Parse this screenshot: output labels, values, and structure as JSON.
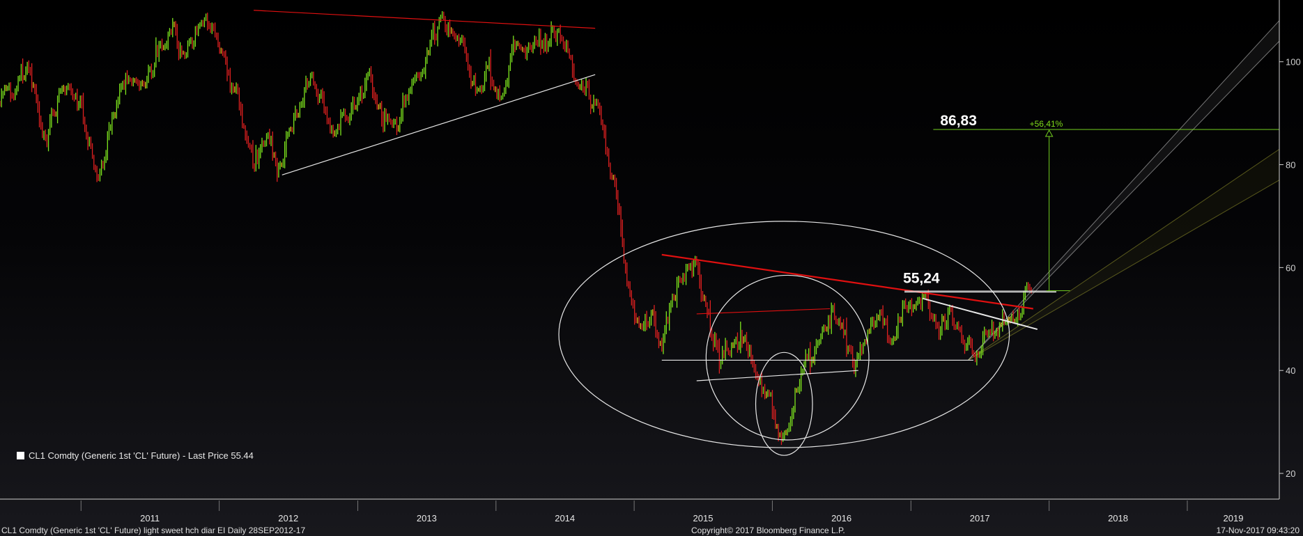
{
  "chart_data": {
    "type": "candlestick",
    "instrument": "CL1 Comdty (Generic 1st 'CL' Future)",
    "legend": {
      "label": "CL1 Comdty (Generic 1st 'CL' Future) - Last Price 55.44",
      "placement": "bottom-left"
    },
    "colors": {
      "up": "#7ee61e",
      "down": "#e02020",
      "neutral": "#e8c41a",
      "annotation_red": "#e01010",
      "annotation_white": "#e8e8e8",
      "target_green": "#74d020"
    },
    "y_axis": {
      "position": "right",
      "ylim": [
        15,
        112
      ],
      "ticks": [
        20,
        40,
        60,
        80,
        100
      ]
    },
    "x_axis": {
      "xlim": [
        "2010-06-01",
        "2019-09-01"
      ],
      "year_labels": [
        "2011",
        "2012",
        "2013",
        "2014",
        "2015",
        "2016",
        "2017",
        "2018",
        "2019"
      ]
    },
    "grid": false,
    "price_path": [
      [
        "2010-06-01",
        92
      ],
      [
        "2010-08-15",
        98
      ],
      [
        "2010-10-01",
        84
      ],
      [
        "2010-11-15",
        95
      ],
      [
        "2011-01-01",
        91
      ],
      [
        "2011-02-15",
        76
      ],
      [
        "2011-03-15",
        86
      ],
      [
        "2011-04-30",
        98
      ],
      [
        "2011-06-15",
        95
      ],
      [
        "2011-08-01",
        103
      ],
      [
        "2011-09-01",
        107
      ],
      [
        "2011-10-01",
        101
      ],
      [
        "2011-11-15",
        110
      ],
      [
        "2012-01-01",
        104
      ],
      [
        "2012-02-01",
        97
      ],
      [
        "2012-03-01",
        89
      ],
      [
        "2012-04-01",
        81
      ],
      [
        "2012-05-15",
        86
      ],
      [
        "2012-06-01",
        78
      ],
      [
        "2012-06-15",
        80
      ],
      [
        "2012-07-15",
        88
      ],
      [
        "2012-09-01",
        97
      ],
      [
        "2012-10-15",
        88
      ],
      [
        "2012-11-15",
        86
      ],
      [
        "2013-01-01",
        93
      ],
      [
        "2013-02-01",
        97
      ],
      [
        "2013-03-01",
        91
      ],
      [
        "2013-04-15",
        88
      ],
      [
        "2013-05-15",
        95
      ],
      [
        "2013-06-15",
        97
      ],
      [
        "2013-07-15",
        105
      ],
      [
        "2013-08-15",
        109
      ],
      [
        "2013-09-01",
        107
      ],
      [
        "2013-10-15",
        101
      ],
      [
        "2013-11-15",
        94
      ],
      [
        "2013-12-15",
        99
      ],
      [
        "2014-01-15",
        92
      ],
      [
        "2014-02-15",
        102
      ],
      [
        "2014-03-15",
        100
      ],
      [
        "2014-04-15",
        104
      ],
      [
        "2014-05-15",
        103
      ],
      [
        "2014-06-15",
        107
      ],
      [
        "2014-07-15",
        100
      ],
      [
        "2014-08-15",
        95
      ],
      [
        "2014-09-15",
        92
      ],
      [
        "2014-10-15",
        84
      ],
      [
        "2014-11-15",
        74
      ],
      [
        "2014-12-15",
        57
      ],
      [
        "2015-01-15",
        47
      ],
      [
        "2015-02-15",
        50
      ],
      [
        "2015-03-15",
        44
      ],
      [
        "2015-04-15",
        56
      ],
      [
        "2015-05-15",
        60
      ],
      [
        "2015-06-15",
        60
      ],
      [
        "2015-07-15",
        50
      ],
      [
        "2015-08-15",
        41
      ],
      [
        "2015-09-15",
        46
      ],
      [
        "2015-10-15",
        46
      ],
      [
        "2015-11-15",
        41
      ],
      [
        "2015-12-20",
        35
      ],
      [
        "2016-01-20",
        27
      ],
      [
        "2016-02-15",
        30
      ],
      [
        "2016-03-15",
        38
      ],
      [
        "2016-04-15",
        43
      ],
      [
        "2016-05-15",
        48
      ],
      [
        "2016-06-10",
        51
      ],
      [
        "2016-07-15",
        45
      ],
      [
        "2016-08-05",
        40
      ],
      [
        "2016-09-01",
        47
      ],
      [
        "2016-10-15",
        51
      ],
      [
        "2016-11-15",
        45
      ],
      [
        "2016-12-15",
        52
      ],
      [
        "2017-01-15",
        53
      ],
      [
        "2017-02-15",
        54
      ],
      [
        "2017-03-15",
        47
      ],
      [
        "2017-04-15",
        52
      ],
      [
        "2017-05-15",
        47
      ],
      [
        "2017-06-20",
        43
      ],
      [
        "2017-07-15",
        47
      ],
      [
        "2017-08-15",
        48
      ],
      [
        "2017-09-15",
        50
      ],
      [
        "2017-10-15",
        52
      ],
      [
        "2017-11-07",
        57.5
      ],
      [
        "2017-11-17",
        55.44
      ]
    ],
    "annotations": {
      "top_resistance": {
        "from": [
          "2012-04-01",
          110
        ],
        "to": [
          "2014-09-20",
          106.5
        ],
        "color": "red"
      },
      "top_support": {
        "from": [
          "2012-06-15",
          78
        ],
        "to": [
          "2014-09-20",
          97.5
        ],
        "color": "white"
      },
      "neckline_red": {
        "from": [
          "2015-03-15",
          62.5
        ],
        "to": [
          "2017-11-20",
          52
        ],
        "color": "red"
      },
      "small_red_line": {
        "from": [
          "2015-06-15",
          51
        ],
        "to": [
          "2016-06-01",
          52
        ],
        "color": "red"
      },
      "base_support": {
        "from": [
          "2015-03-15",
          42
        ],
        "to": [
          "2017-06-15",
          42
        ],
        "color": "white"
      },
      "inner_support": {
        "from": [
          "2015-06-15",
          38
        ],
        "to": [
          "2016-08-15",
          40
        ],
        "color": "white"
      },
      "falling_wedge_white": {
        "from": [
          "2017-02-01",
          54
        ],
        "to": [
          "2017-12-01",
          48
        ],
        "color": "white"
      },
      "level_lines": {
        "values": [
          55.24,
          55.44
        ],
        "from": "2016-12-15",
        "to": "2018-01-20",
        "color": "white"
      },
      "ellipses": [
        {
          "center": [
            "2016-02-01",
            47
          ],
          "rx_days": 595,
          "ry_price": 22,
          "color": "white"
        },
        {
          "center": [
            "2016-02-10",
            42.5
          ],
          "rx_days": 215,
          "ry_price": 16,
          "color": "white"
        },
        {
          "center": [
            "2016-02-01",
            33.5
          ],
          "rx_days": 75,
          "ry_price": 10,
          "color": "white"
        }
      ],
      "channel_white": {
        "bands": [
          [
            [
              "2017-06-01",
              42
            ],
            [
              "2019-09-01",
              108
            ]
          ],
          [
            [
              "2017-06-01",
              42
            ],
            [
              "2019-09-01",
              104
            ]
          ]
        ],
        "color": "white"
      },
      "channel_olive": {
        "bands": [
          [
            [
              "2017-06-01",
              42
            ],
            [
              "2019-09-01",
              83
            ]
          ],
          [
            [
              "2017-06-01",
              42
            ],
            [
              "2019-09-01",
              77
            ]
          ]
        ],
        "color": "olive"
      },
      "target": {
        "value": 86.83,
        "label": "86,83",
        "pct_label": "+56,41%",
        "from": "2017-03-01",
        "to": "2019-09-01",
        "base": 55.5,
        "arrow_date": "2018-01-01",
        "color": "green"
      },
      "neckline_label": {
        "value": 55.24,
        "label": "55,24",
        "date": "2016-12-15"
      }
    }
  },
  "footer": {
    "left": "CL1 Comdty (Generic 1st 'CL' Future) light sweet hch diar EI  Daily 28SEP2012-17",
    "center": "Copyright© 2017 Bloomberg Finance L.P.",
    "right": "17-Nov-2017 09:43:20"
  }
}
